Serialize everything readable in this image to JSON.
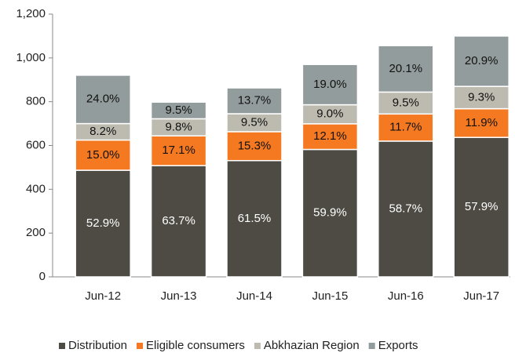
{
  "chart_data": {
    "type": "stacked_bar",
    "categories": [
      "Jun-12",
      "Jun-13",
      "Jun-14",
      "Jun-15",
      "Jun-16",
      "Jun-17"
    ],
    "series": [
      {
        "name": "Distribution",
        "color": "#4d4b43",
        "values": [
          487,
          508,
          531,
          582,
          620,
          637
        ],
        "share_labels": [
          "52.9%",
          "63.7%",
          "61.5%",
          "59.9%",
          "58.7%",
          "57.9%"
        ]
      },
      {
        "name": "Eligible consumers",
        "color": "#f47920",
        "values": [
          138,
          136,
          132,
          117,
          124,
          131
        ],
        "share_labels": [
          "15.0%",
          "17.1%",
          "15.3%",
          "12.1%",
          "11.7%",
          "11.9%"
        ]
      },
      {
        "name": "Abkhazian Region",
        "color": "#bdbab0",
        "values": [
          75,
          78,
          82,
          87,
          100,
          102
        ],
        "share_labels": [
          "8.2%",
          "9.8%",
          "9.5%",
          "9.0%",
          "9.5%",
          "9.3%"
        ]
      },
      {
        "name": "Exports",
        "color": "#939c9c",
        "values": [
          221,
          76,
          118,
          184,
          212,
          230
        ],
        "share_labels": [
          "24.0%",
          "9.5%",
          "13.7%",
          "19.0%",
          "20.1%",
          "20.9%"
        ]
      }
    ],
    "ylim": [
      0,
      1200
    ],
    "yticks": [
      0,
      200,
      400,
      600,
      800,
      {
        "value": 1000,
        "label": "1,000"
      },
      {
        "value": 1200,
        "label": "1,200"
      }
    ],
    "legend": "bottom"
  }
}
